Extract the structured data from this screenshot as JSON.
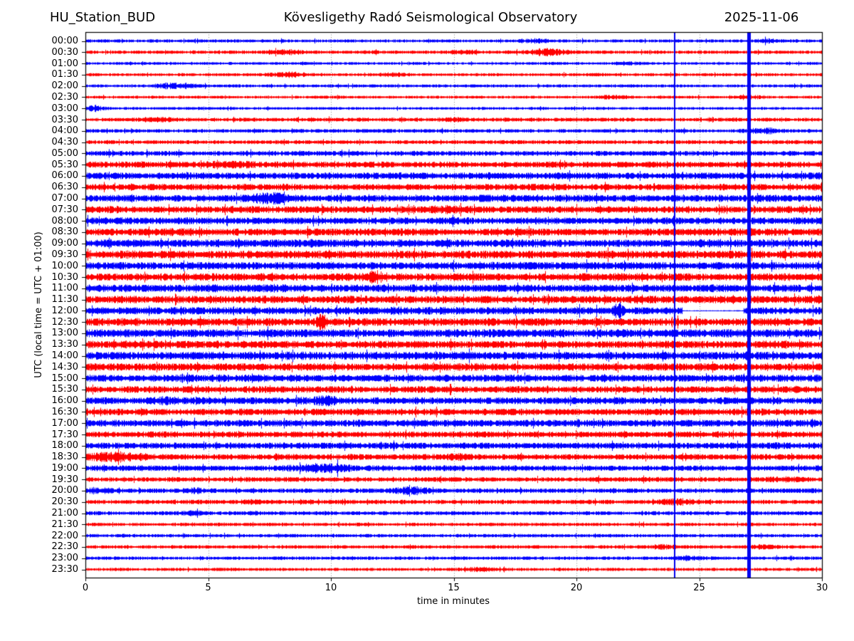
{
  "header": {
    "station": "HU_Station_BUD",
    "observatory": "Kövesligethy Radó Seismological Observatory",
    "date": "2025-11-06"
  },
  "chart_data": {
    "type": "line",
    "subtype": "helicorder-day-plot",
    "xlabel": "time in minutes",
    "ylabel": "UTC (local time = UTC + 01:00)",
    "x_range": [
      0,
      30
    ],
    "x_ticks": [
      0,
      5,
      10,
      15,
      20,
      25,
      30
    ],
    "grid_minutes": [
      5,
      10,
      15,
      20,
      25
    ],
    "grid_color": "#888888",
    "minutes_per_row": 30,
    "trace_colors": {
      "even_rows": "#0000ff",
      "odd_rows": "#ff0000"
    },
    "vertical_lines": [
      {
        "minute": 24.0,
        "width": 2,
        "color": "#0000ee"
      },
      {
        "minute": 27.0,
        "width": 5,
        "color": "#0000ee"
      }
    ],
    "amplitude_units": "relative trace half-amplitude (pixels)",
    "rows": [
      {
        "time": "00:00",
        "color": "#0000ff",
        "amp": 2.2,
        "events": [
          {
            "t": 18.3,
            "w": 0.4,
            "a": 1.5
          },
          {
            "t": 27.8,
            "w": 0.3,
            "a": 1.5
          }
        ]
      },
      {
        "time": "00:30",
        "color": "#ff0000",
        "amp": 2.4,
        "events": [
          {
            "t": 8.2,
            "w": 0.5,
            "a": 2.0
          },
          {
            "t": 15.5,
            "w": 0.3,
            "a": 1.5
          },
          {
            "t": 18.8,
            "w": 0.5,
            "a": 3.5
          }
        ]
      },
      {
        "time": "01:00",
        "color": "#0000ff",
        "amp": 2.0,
        "events": [
          {
            "t": 22.0,
            "w": 0.4,
            "a": 1.0
          }
        ]
      },
      {
        "time": "01:30",
        "color": "#ff0000",
        "amp": 2.2,
        "events": [
          {
            "t": 8.3,
            "w": 0.5,
            "a": 2.5
          },
          {
            "t": 12.5,
            "w": 0.3,
            "a": 1.5
          }
        ]
      },
      {
        "time": "02:00",
        "color": "#0000ff",
        "amp": 2.2,
        "events": [
          {
            "t": 3.6,
            "w": 0.6,
            "a": 2.5
          }
        ]
      },
      {
        "time": "02:30",
        "color": "#ff0000",
        "amp": 2.0,
        "events": [
          {
            "t": 21.5,
            "w": 0.4,
            "a": 1.5
          },
          {
            "t": 27.0,
            "w": 0.4,
            "a": 1.5
          }
        ]
      },
      {
        "time": "03:00",
        "color": "#0000ff",
        "amp": 2.0,
        "events": [
          {
            "t": 0.3,
            "w": 0.3,
            "a": 2.5
          }
        ]
      },
      {
        "time": "03:30",
        "color": "#ff0000",
        "amp": 2.6,
        "events": [
          {
            "t": 3.0,
            "w": 0.5,
            "a": 1.5
          },
          {
            "t": 15.0,
            "w": 0.4,
            "a": 1.5
          }
        ]
      },
      {
        "time": "04:00",
        "color": "#0000ff",
        "amp": 2.6,
        "events": [
          {
            "t": 27.7,
            "w": 0.5,
            "a": 2.5
          }
        ]
      },
      {
        "time": "04:30",
        "color": "#ff0000",
        "amp": 2.8,
        "events": []
      },
      {
        "time": "05:00",
        "color": "#0000ff",
        "amp": 3.4,
        "events": []
      },
      {
        "time": "05:30",
        "color": "#ff0000",
        "amp": 4.2,
        "events": [
          {
            "t": 6.0,
            "w": 0.8,
            "a": 1.5
          }
        ]
      },
      {
        "time": "06:00",
        "color": "#0000ff",
        "amp": 4.6,
        "events": []
      },
      {
        "time": "06:30",
        "color": "#ff0000",
        "amp": 4.4,
        "events": []
      },
      {
        "time": "07:00",
        "color": "#0000ff",
        "amp": 4.8,
        "events": [
          {
            "t": 7.4,
            "w": 0.5,
            "a": 4.5
          }
        ]
      },
      {
        "time": "07:30",
        "color": "#ff0000",
        "amp": 4.8,
        "events": [
          {
            "t": 14.8,
            "w": 0.5,
            "a": 2.0
          }
        ]
      },
      {
        "time": "08:00",
        "color": "#0000ff",
        "amp": 4.8,
        "events": []
      },
      {
        "time": "08:30",
        "color": "#ff0000",
        "amp": 5.0,
        "events": []
      },
      {
        "time": "09:00",
        "color": "#0000ff",
        "amp": 5.4,
        "events": []
      },
      {
        "time": "09:30",
        "color": "#ff0000",
        "amp": 5.4,
        "events": []
      },
      {
        "time": "10:00",
        "color": "#0000ff",
        "amp": 5.2,
        "events": []
      },
      {
        "time": "10:30",
        "color": "#ff0000",
        "amp": 5.2,
        "events": [
          {
            "t": 11.7,
            "w": 0.15,
            "a": 4.0
          }
        ]
      },
      {
        "time": "11:00",
        "color": "#0000ff",
        "amp": 5.2,
        "events": []
      },
      {
        "time": "11:30",
        "color": "#ff0000",
        "amp": 5.2,
        "events": []
      },
      {
        "time": "12:00",
        "color": "#0000ff",
        "amp": 5.0,
        "events": [
          {
            "t": 13.0,
            "w": 1.0,
            "a": 1.0
          },
          {
            "t": 21.7,
            "w": 0.12,
            "a": 10.0
          }
        ],
        "quiet": [
          {
            "from": 24.3,
            "to": 26.8,
            "a": 0.8
          }
        ]
      },
      {
        "time": "12:30",
        "color": "#ff0000",
        "amp": 5.4,
        "events": [
          {
            "t": 9.6,
            "w": 0.12,
            "a": 9.0
          }
        ]
      },
      {
        "time": "13:00",
        "color": "#0000ff",
        "amp": 5.6,
        "events": []
      },
      {
        "time": "13:30",
        "color": "#ff0000",
        "amp": 5.2,
        "events": []
      },
      {
        "time": "14:00",
        "color": "#0000ff",
        "amp": 5.6,
        "events": []
      },
      {
        "time": "14:30",
        "color": "#ff0000",
        "amp": 5.2,
        "events": []
      },
      {
        "time": "15:00",
        "color": "#0000ff",
        "amp": 5.0,
        "events": []
      },
      {
        "time": "15:30",
        "color": "#ff0000",
        "amp": 4.6,
        "events": []
      },
      {
        "time": "16:00",
        "color": "#0000ff",
        "amp": 4.8,
        "events": [
          {
            "t": 3.2,
            "w": 0.4,
            "a": 1.5
          },
          {
            "t": 9.8,
            "w": 0.3,
            "a": 3.5
          }
        ]
      },
      {
        "time": "16:30",
        "color": "#ff0000",
        "amp": 4.6,
        "events": []
      },
      {
        "time": "17:00",
        "color": "#0000ff",
        "amp": 4.8,
        "events": []
      },
      {
        "time": "17:30",
        "color": "#ff0000",
        "amp": 4.2,
        "events": []
      },
      {
        "time": "18:00",
        "color": "#0000ff",
        "amp": 4.4,
        "events": []
      },
      {
        "time": "18:30",
        "color": "#ff0000",
        "amp": 4.0,
        "events": [
          {
            "t": 1.2,
            "w": 0.8,
            "a": 3.5
          },
          {
            "t": 15.2,
            "w": 0.4,
            "a": 2.0
          }
        ]
      },
      {
        "time": "19:00",
        "color": "#0000ff",
        "amp": 3.8,
        "events": [
          {
            "t": 9.7,
            "w": 0.8,
            "a": 4.0
          }
        ]
      },
      {
        "time": "19:30",
        "color": "#ff0000",
        "amp": 3.2,
        "events": [
          {
            "t": 28.5,
            "w": 0.5,
            "a": 1.5
          }
        ]
      },
      {
        "time": "20:00",
        "color": "#0000ff",
        "amp": 3.2,
        "events": [
          {
            "t": 0.5,
            "w": 0.4,
            "a": 2.0
          },
          {
            "t": 4.5,
            "w": 0.3,
            "a": 1.5
          },
          {
            "t": 13.3,
            "w": 0.5,
            "a": 3.5
          }
        ]
      },
      {
        "time": "20:30",
        "color": "#ff0000",
        "amp": 3.0,
        "events": [
          {
            "t": 6.8,
            "w": 0.3,
            "a": 1.5
          },
          {
            "t": 24.0,
            "w": 0.5,
            "a": 2.5
          }
        ]
      },
      {
        "time": "21:00",
        "color": "#0000ff",
        "amp": 2.8,
        "events": [
          {
            "t": 4.4,
            "w": 0.4,
            "a": 1.5
          }
        ]
      },
      {
        "time": "21:30",
        "color": "#ff0000",
        "amp": 2.4,
        "events": []
      },
      {
        "time": "22:00",
        "color": "#0000ff",
        "amp": 2.4,
        "events": []
      },
      {
        "time": "22:30",
        "color": "#ff0000",
        "amp": 2.4,
        "events": [
          {
            "t": 23.5,
            "w": 0.4,
            "a": 2.0
          },
          {
            "t": 27.6,
            "w": 0.4,
            "a": 1.5
          }
        ]
      },
      {
        "time": "23:00",
        "color": "#0000ff",
        "amp": 2.4,
        "events": [
          {
            "t": 24.5,
            "w": 0.3,
            "a": 1.5
          }
        ]
      },
      {
        "time": "23:30",
        "color": "#ff0000",
        "amp": 2.2,
        "events": [
          {
            "t": 16.0,
            "w": 0.6,
            "a": 1.5
          }
        ]
      }
    ]
  }
}
